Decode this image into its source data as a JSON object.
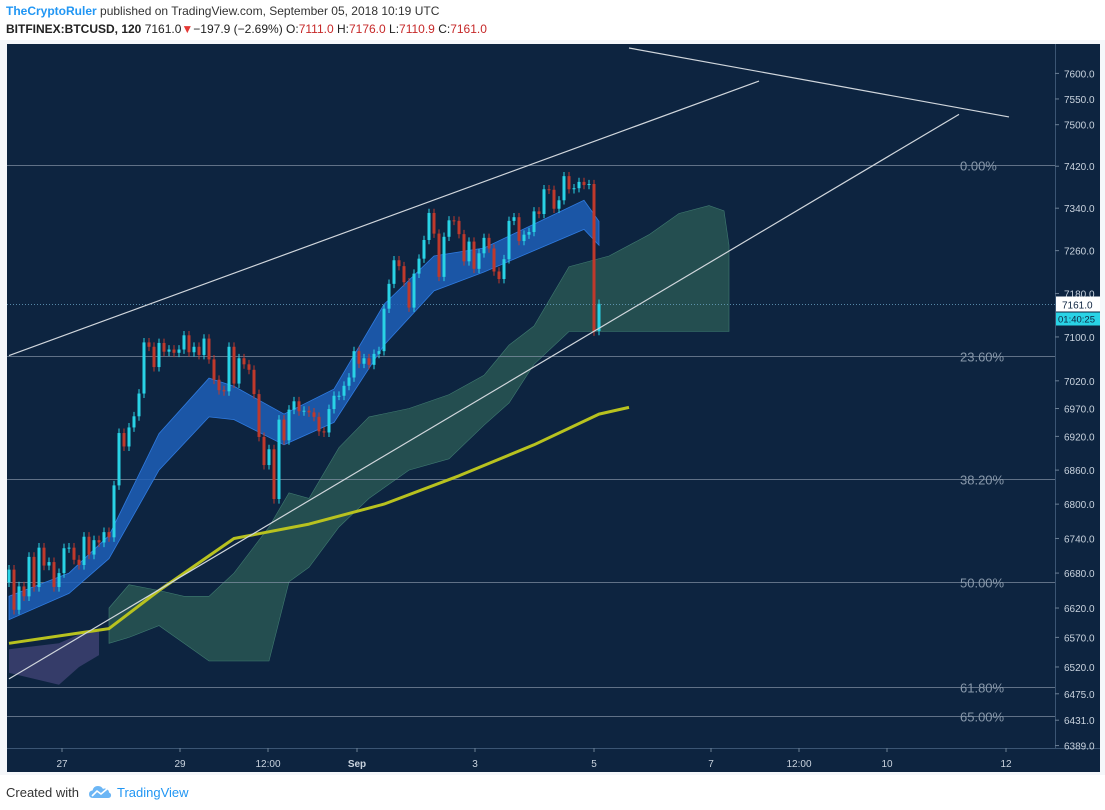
{
  "header": {
    "author": "TheCryptoRuler",
    "published_text": "published on TradingView.com, September 05, 2018 10:19 UTC",
    "symbol": "BITFINEX:BTCUSD, 120",
    "last": "7161.0",
    "down_arrow": "▼",
    "change": "−197.9 (−2.69%)",
    "o_label": "O:",
    "o_value": "7111.0",
    "h_label": "H:",
    "h_value": "7176.0",
    "l_label": "L:",
    "l_value": "7110.9",
    "c_label": "C:",
    "c_value": "7161.0"
  },
  "footer": {
    "created_with": "Created with",
    "brand": "TradingView",
    "logo_icon": "tradingview-cloud-icon"
  },
  "colors": {
    "background": "#0d2440",
    "bull": "#29d3e6",
    "bear": "#c0392b",
    "ema_band": "#1e5fb8",
    "sma": "#b8c21f",
    "cloud": "#2c5c55",
    "cloud_bear": "#3a3f6e",
    "trendline": "#d0d6dc",
    "fib": "#8898aa"
  },
  "chart_data": {
    "type": "candlestick",
    "title": "",
    "xlabel": "",
    "ylabel": "",
    "ylim": [
      6385,
      7650
    ],
    "y_scale": "log",
    "grid": false,
    "x_tick_labels": [
      "27",
      "29",
      "12:00",
      "Sep",
      "3",
      "5",
      "7",
      "12:00",
      "10",
      "12"
    ],
    "y_tick_labels": [
      "7600.0",
      "7550.0",
      "7500.0",
      "7420.0",
      "7340.0",
      "7260.0",
      "7180.0",
      "7100.0",
      "7020.0",
      "6970.0",
      "6920.0",
      "6860.0",
      "6800.0",
      "6740.0",
      "6680.0",
      "6620.0",
      "6570.0",
      "6520.0",
      "6475.0",
      "6431.0",
      "6389.0"
    ],
    "y_tick_values": [
      7600,
      7550,
      7500,
      7420,
      7340,
      7260,
      7180,
      7100,
      7020,
      6970,
      6920,
      6860,
      6800,
      6740,
      6680,
      6620,
      6570,
      6520,
      6475,
      6431,
      6389
    ],
    "last_price": {
      "label": "7161.0",
      "value": 7161.0,
      "countdown": "01:40:25"
    },
    "fib_levels": [
      {
        "label": "0.00%",
        "price": 7422
      },
      {
        "label": "23.60%",
        "price": 7066
      },
      {
        "label": "38.20%",
        "price": 6844
      },
      {
        "label": "50.00%",
        "price": 6665
      },
      {
        "label": "61.80%",
        "price": 6487
      },
      {
        "label": "65.00%",
        "price": 6438
      }
    ],
    "candles_close": [
      6686,
      6617,
      6657,
      6640,
      6708,
      6656,
      6724,
      6693,
      6699,
      6656,
      6680,
      6723,
      6724,
      6703,
      6694,
      6743,
      6712,
      6737,
      6733,
      6751,
      6742,
      6833,
      6926,
      6902,
      6936,
      6956,
      6997,
      7090,
      7082,
      7045,
      7089,
      7073,
      7077,
      7071,
      7077,
      7103,
      7072,
      7082,
      7067,
      7097,
      7059,
      7022,
      7003,
      7001,
      7082,
      7015,
      7061,
      7050,
      7040,
      6996,
      6919,
      6869,
      6897,
      6809,
      6950,
      6913,
      6968,
      6983,
      6965,
      6966,
      6963,
      6955,
      6929,
      6927,
      6969,
      6993,
      6993,
      7011,
      7026,
      7074,
      7051,
      7061,
      7049,
      7069,
      7074,
      7152,
      7198,
      7242,
      7231,
      7201,
      7154,
      7217,
      7245,
      7280,
      7331,
      7292,
      7211,
      7286,
      7317,
      7316,
      7291,
      7240,
      7277,
      7226,
      7255,
      7284,
      7264,
      7221,
      7207,
      7244,
      7316,
      7323,
      7278,
      7290,
      7295,
      7334,
      7329,
      7376,
      7375,
      7339,
      7355,
      7401,
      7376,
      7378,
      7390,
      7384,
      7386,
      7110,
      7161
    ],
    "candles_open": [
      6664,
      6686,
      6617,
      6657,
      6640,
      6708,
      6656,
      6724,
      6693,
      6699,
      6656,
      6680,
      6723,
      6724,
      6703,
      6694,
      6743,
      6712,
      6737,
      6733,
      6751,
      6742,
      6833,
      6926,
      6902,
      6936,
      6956,
      6997,
      7090,
      7082,
      7045,
      7089,
      7073,
      7077,
      7071,
      7077,
      7103,
      7072,
      7082,
      7067,
      7097,
      7059,
      7022,
      7003,
      7001,
      7082,
      7015,
      7061,
      7050,
      7040,
      6996,
      6919,
      6869,
      6897,
      6809,
      6950,
      6913,
      6968,
      6983,
      6965,
      6966,
      6963,
      6955,
      6929,
      6927,
      6969,
      6993,
      6993,
      7011,
      7026,
      7074,
      7051,
      7061,
      7049,
      7069,
      7074,
      7152,
      7198,
      7242,
      7231,
      7201,
      7154,
      7217,
      7245,
      7280,
      7331,
      7292,
      7211,
      7286,
      7317,
      7316,
      7291,
      7240,
      7277,
      7226,
      7255,
      7284,
      7264,
      7221,
      7207,
      7244,
      7316,
      7323,
      7278,
      7290,
      7295,
      7334,
      7329,
      7376,
      7375,
      7339,
      7355,
      7401,
      7376,
      7378,
      7390,
      7384,
      7386,
      7111
    ],
    "sma": [
      {
        "t": 0,
        "p": 6560
      },
      {
        "t": 20,
        "p": 6585
      },
      {
        "t": 30,
        "p": 6650
      },
      {
        "t": 45,
        "p": 6740
      },
      {
        "t": 60,
        "p": 6765
      },
      {
        "t": 75,
        "p": 6800
      },
      {
        "t": 90,
        "p": 6850
      },
      {
        "t": 105,
        "p": 6905
      },
      {
        "t": 118,
        "p": 6960
      },
      {
        "t": 124,
        "p": 6972
      }
    ],
    "ema_band_upper": [
      {
        "t": 0,
        "p": 6640
      },
      {
        "t": 12,
        "p": 6680
      },
      {
        "t": 20,
        "p": 6745
      },
      {
        "t": 30,
        "p": 6925
      },
      {
        "t": 40,
        "p": 7025
      },
      {
        "t": 45,
        "p": 7010
      },
      {
        "t": 55,
        "p": 6960
      },
      {
        "t": 65,
        "p": 7005
      },
      {
        "t": 75,
        "p": 7160
      },
      {
        "t": 85,
        "p": 7250
      },
      {
        "t": 95,
        "p": 7265
      },
      {
        "t": 105,
        "p": 7310
      },
      {
        "t": 115,
        "p": 7355
      },
      {
        "t": 118,
        "p": 7315
      }
    ],
    "ema_band_lower": [
      {
        "t": 0,
        "p": 6600
      },
      {
        "t": 12,
        "p": 6645
      },
      {
        "t": 20,
        "p": 6705
      },
      {
        "t": 30,
        "p": 6860
      },
      {
        "t": 40,
        "p": 6955
      },
      {
        "t": 45,
        "p": 6950
      },
      {
        "t": 55,
        "p": 6905
      },
      {
        "t": 65,
        "p": 6945
      },
      {
        "t": 75,
        "p": 7085
      },
      {
        "t": 85,
        "p": 7185
      },
      {
        "t": 95,
        "p": 7220
      },
      {
        "t": 105,
        "p": 7260
      },
      {
        "t": 115,
        "p": 7300
      },
      {
        "t": 118,
        "p": 7270
      }
    ],
    "cloud_bearish": [
      {
        "t": 0,
        "p1": 6550,
        "p2": 6510
      },
      {
        "t": 10,
        "p1": 6560,
        "p2": 6490
      },
      {
        "t": 14,
        "p1": 6575,
        "p2": 6520
      },
      {
        "t": 18,
        "p1": 6580,
        "p2": 6540
      }
    ],
    "cloud_bullish": [
      {
        "t": 20,
        "p1": 6620,
        "p2": 6560
      },
      {
        "t": 24,
        "p1": 6660,
        "p2": 6570
      },
      {
        "t": 30,
        "p1": 6650,
        "p2": 6590
      },
      {
        "t": 35,
        "p1": 6640,
        "p2": 6560
      },
      {
        "t": 40,
        "p1": 6640,
        "p2": 6530
      },
      {
        "t": 45,
        "p1": 6680,
        "p2": 6530
      },
      {
        "t": 52,
        "p1": 6760,
        "p2": 6530
      },
      {
        "t": 56,
        "p1": 6820,
        "p2": 6665
      },
      {
        "t": 60,
        "p1": 6810,
        "p2": 6690
      },
      {
        "t": 66,
        "p1": 6900,
        "p2": 6760
      },
      {
        "t": 72,
        "p1": 6955,
        "p2": 6810
      },
      {
        "t": 80,
        "p1": 6970,
        "p2": 6860
      },
      {
        "t": 88,
        "p1": 6995,
        "p2": 6880
      },
      {
        "t": 95,
        "p1": 7030,
        "p2": 6940
      },
      {
        "t": 100,
        "p1": 7085,
        "p2": 6980
      },
      {
        "t": 105,
        "p1": 7120,
        "p2": 7050
      },
      {
        "t": 112,
        "p1": 7230,
        "p2": 7110
      },
      {
        "t": 120,
        "p1": 7250,
        "p2": 7110
      },
      {
        "t": 128,
        "p1": 7290,
        "p2": 7110
      },
      {
        "t": 134,
        "p1": 7330,
        "p2": 7110
      },
      {
        "t": 140,
        "p1": 7345,
        "p2": 7110
      },
      {
        "t": 143,
        "p1": 7335,
        "p2": 7110
      },
      {
        "t": 144,
        "p1": 7270,
        "p2": 7110
      }
    ],
    "trendlines": [
      {
        "t1": 0,
        "p1": 7066,
        "t2": 150,
        "p2": 7585
      },
      {
        "t1": 0,
        "p1": 6500,
        "t2": 190,
        "p2": 7520
      },
      {
        "t1": 124,
        "p1": 7650,
        "t2": 200,
        "p2": 7515
      }
    ]
  }
}
